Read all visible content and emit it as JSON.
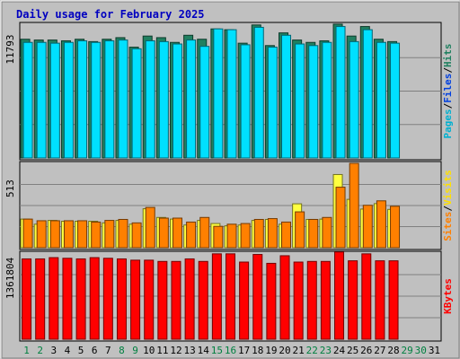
{
  "chart_data": {
    "type": "bar",
    "title": "Daily usage for February 2025",
    "days": [
      "1",
      "2",
      "3",
      "4",
      "5",
      "6",
      "7",
      "8",
      "9",
      "10",
      "11",
      "12",
      "13",
      "14",
      "15",
      "16",
      "17",
      "18",
      "19",
      "20",
      "21",
      "22",
      "23",
      "24",
      "25",
      "26",
      "27",
      "28",
      "29",
      "30",
      "31"
    ],
    "weekend_days": [
      "1",
      "2",
      "8",
      "9",
      "15",
      "16",
      "22",
      "23",
      "29",
      "30"
    ],
    "panels": [
      {
        "max_label": "11793",
        "ymax": 11793,
        "legend": [
          {
            "name": "Pages",
            "color": "#00b0d0"
          },
          {
            "name": "Files",
            "color": "#0040e0"
          },
          {
            "name": "Hits",
            "color": "#208060"
          }
        ],
        "series": [
          {
            "name": "Hits",
            "color": "#208060",
            "values": [
              10470,
              10400,
              10400,
              10330,
              10470,
              10260,
              10470,
              10610,
              9770,
              10750,
              10610,
              10190,
              10820,
              10470,
              11380,
              11310,
              10120,
              11730,
              9910,
              11030,
              10400,
              10190,
              10330,
              11800,
              10750,
              11590,
              10470,
              10260,
              null,
              null,
              null
            ]
          },
          {
            "name": "Pages",
            "color": "#00e0ff",
            "values": [
              10190,
              10190,
              10120,
              10190,
              10330,
              10190,
              10330,
              10400,
              9630,
              10330,
              10260,
              10050,
              10400,
              9840,
              11380,
              11310,
              9980,
              11520,
              9770,
              10820,
              10050,
              9910,
              10190,
              11590,
              10260,
              11310,
              10190,
              10120,
              null,
              null,
              null
            ]
          }
        ]
      },
      {
        "max_label": "513",
        "ymax": 513,
        "legend": [
          {
            "name": "Sites",
            "color": "#ff8000"
          },
          {
            "name": "Visits",
            "color": "#ffe000"
          }
        ],
        "series": [
          {
            "name": "Visits",
            "color": "#ffff40",
            "values": [
              174,
              143,
              166,
              161,
              161,
              161,
              151,
              166,
              143,
              237,
              184,
              174,
              138,
              166,
              147,
              133,
              138,
              166,
              172,
              143,
              267,
              172,
              174,
              445,
              294,
              235,
              268,
              233,
              null,
              null,
              null
            ]
          },
          {
            "name": "Sites",
            "color": "#ff8000",
            "values": [
              174,
              164,
              164,
              164,
              164,
              156,
              166,
              172,
              151,
              245,
              180,
              180,
              156,
              184,
              130,
              143,
              147,
              172,
              177,
              156,
              218,
              172,
              184,
              368,
              513,
              258,
              285,
              252,
              null,
              null,
              null
            ]
          }
        ]
      },
      {
        "max_label": "1361804",
        "ymax": 1361804,
        "legend": [
          {
            "name": "KBytes",
            "color": "#ff0000"
          }
        ],
        "series": [
          {
            "name": "KBytes",
            "color": "#ff0000",
            "values": [
              1270000,
              1270000,
              1290000,
              1280000,
              1270000,
              1290000,
              1280000,
              1270000,
              1250000,
              1250000,
              1230000,
              1230000,
              1270000,
              1230000,
              1350000,
              1350000,
              1220000,
              1340000,
              1200000,
              1320000,
              1220000,
              1230000,
              1230000,
              1380000,
              1240000,
              1350000,
              1240000,
              1240000,
              null,
              null,
              null
            ]
          }
        ]
      }
    ]
  }
}
